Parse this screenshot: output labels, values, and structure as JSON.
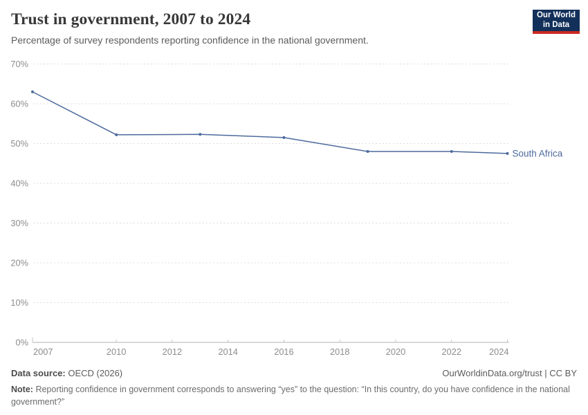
{
  "header": {
    "title": "Trust in government, 2007 to 2024",
    "subtitle": "Percentage of survey respondents reporting confidence in the national government.",
    "logo": {
      "line1": "Our World",
      "line2": "in Data"
    }
  },
  "chart_data": {
    "type": "line",
    "title": "Trust in government, 2007 to 2024",
    "subtitle": "Percentage of survey respondents reporting confidence in the national government.",
    "x": [
      2007,
      2010,
      2013,
      2016,
      2019,
      2022,
      2024
    ],
    "series": [
      {
        "name": "South Africa",
        "color": "#4C6A9C",
        "values": [
          63,
          52.2,
          52.3,
          51.5,
          48,
          48,
          47.5
        ]
      }
    ],
    "x_tick_labels": [
      2007,
      2010,
      2012,
      2014,
      2016,
      2018,
      2020,
      2022,
      2024
    ],
    "y_ticks": [
      0,
      10,
      20,
      30,
      40,
      50,
      60,
      70
    ],
    "y_tick_suffix": "%",
    "xlim": [
      2007,
      2024
    ],
    "ylim": [
      0,
      70
    ],
    "grid": "horizontal-dashed",
    "legend_position": "line-end-label",
    "colors": {
      "line": "#4C6A9C",
      "grid": "#dcdcdc",
      "axis": "#b0b0b0",
      "tick_text": "#8c8c8c"
    }
  },
  "footer": {
    "source_label": "Data source:",
    "source_value": "OECD (2026)",
    "link": "OurWorldinData.org/trust",
    "license": " | CC BY",
    "note_label": "Note:",
    "note_text": "Reporting confidence in government corresponds to answering “yes” to the question: “In this country, do you have confidence in the national government?”"
  }
}
